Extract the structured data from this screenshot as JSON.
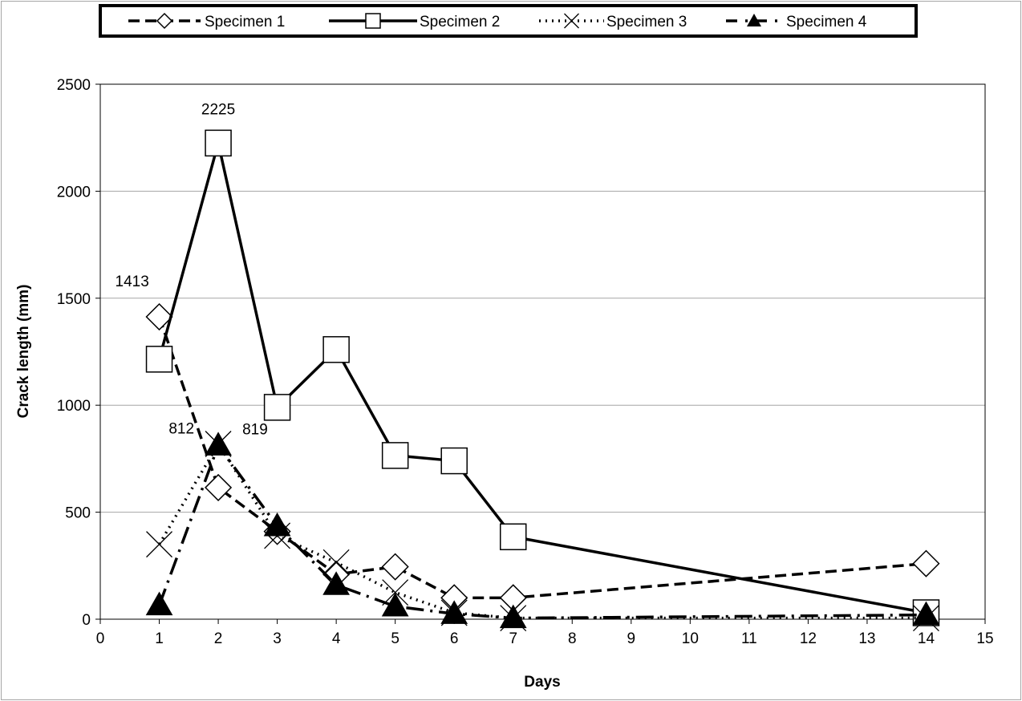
{
  "chart_data": {
    "type": "line",
    "title": "",
    "xlabel": "Days",
    "ylabel": "Crack length (mm)",
    "xlim": [
      0,
      15
    ],
    "ylim": [
      0,
      2500
    ],
    "xticks": [
      0,
      1,
      2,
      3,
      4,
      5,
      6,
      7,
      8,
      9,
      10,
      11,
      12,
      13,
      14,
      15
    ],
    "yticks": [
      0,
      500,
      1000,
      1500,
      2000,
      2500
    ],
    "grid": "horizontal",
    "legend_position": "top",
    "x": [
      1,
      2,
      3,
      4,
      5,
      6,
      7,
      14
    ],
    "series": [
      {
        "name": "Specimen 1",
        "values": [
          1413,
          615,
          410,
          210,
          245,
          100,
          100,
          260
        ],
        "line": "dashed",
        "marker": "diamond"
      },
      {
        "name": "Specimen 2",
        "values": [
          1215,
          2225,
          990,
          1260,
          765,
          740,
          385,
          30
        ],
        "line": "solid",
        "marker": "square"
      },
      {
        "name": "Specimen 3",
        "values": [
          350,
          819,
          390,
          265,
          125,
          30,
          5,
          5
        ],
        "line": "dotted",
        "marker": "x"
      },
      {
        "name": "Specimen 4",
        "values": [
          65,
          812,
          435,
          160,
          60,
          25,
          5,
          20
        ],
        "line": "dashdot",
        "marker": "triangle"
      }
    ],
    "annotations": [
      {
        "text": "1413",
        "x": 1,
        "y": 1413,
        "anchor": "above-left"
      },
      {
        "text": "2225",
        "x": 2,
        "y": 2225,
        "anchor": "above"
      },
      {
        "text": "812",
        "x": 2,
        "y": 812,
        "anchor": "left"
      },
      {
        "text": "819",
        "x": 2,
        "y": 819,
        "anchor": "right"
      }
    ],
    "colors": {
      "line": "#000000",
      "grid": "#a6a6a6",
      "background": "#ffffff"
    }
  }
}
